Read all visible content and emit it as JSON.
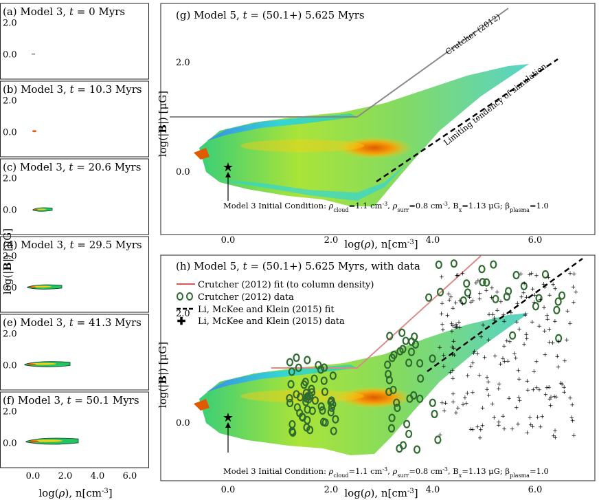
{
  "chart_data": [
    {
      "panel": "a",
      "type": "scatter",
      "title": "(a) Model 3, t = 0 Myrs",
      "title_prefix": "(a) Model 3, ",
      "t_label": "t",
      "t_rest": " = 0 Myrs",
      "yticks": [
        "2.0",
        "0.0"
      ]
    },
    {
      "panel": "b",
      "type": "scatter",
      "title": "(b) Model 3, t = 10.3 Myrs",
      "title_prefix": "(b) Model 3, ",
      "t_label": "t",
      "t_rest": " = 10.3 Myrs",
      "yticks": [
        "2.0",
        "0.0"
      ]
    },
    {
      "panel": "c",
      "type": "scatter",
      "title": "(c) Model 3, t = 20.6 Myrs",
      "title_prefix": "(c) Model 3, ",
      "t_label": "t",
      "t_rest": " = 20.6 Myrs",
      "yticks": [
        "2.0",
        "0.0"
      ]
    },
    {
      "panel": "d",
      "type": "scatter",
      "title": "(d) Model 3, t = 29.5 Myrs",
      "title_prefix": "(d) Model 3, ",
      "t_label": "t",
      "t_rest": " = 29.5 Myrs",
      "yticks": [
        "2.0",
        "0.0"
      ]
    },
    {
      "panel": "e",
      "type": "scatter",
      "title": "(e) Model 3, t = 41.3 Myrs",
      "title_prefix": "(e) Model 3, ",
      "t_label": "t",
      "t_rest": " = 41.3 Myrs",
      "yticks": [
        "2.0",
        "0.0"
      ]
    },
    {
      "panel": "f",
      "type": "scatter",
      "title": "(f) Model 3, t = 50.1 Myrs",
      "title_prefix": "(f) Model 3, ",
      "t_label": "t",
      "t_rest": " = 50.1 Myrs",
      "yticks": [
        "2.0",
        "0.0"
      ],
      "xticks": [
        "0.0",
        "2.0",
        "4.0",
        "6.0"
      ]
    },
    {
      "panel": "g",
      "type": "heatmap",
      "title": "(g) Model 5, t = (50.1+) 5.625 Myrs",
      "title_prefix": "(g) Model 5, ",
      "t_label": "t",
      "t_rest": " = (50.1+) 5.625 Myrs",
      "xticks": [
        "0.0",
        "2.0",
        "4.0",
        "6.0"
      ],
      "yticks": [
        "2.0",
        "0.0"
      ],
      "annotations": [
        "Crutcher (2012)",
        "Limiting tendency of simulation"
      ],
      "initial_condition": "Model 3 Initial Condition"
    },
    {
      "panel": "h",
      "type": "heatmap",
      "title": "(h) Model 5, t = (50.1+) 5.625 Myrs, with data",
      "title_prefix": "(h) Model 5, ",
      "t_label": "t",
      "t_rest": " = (50.1+) 5.625 Myrs, with data",
      "xticks": [
        "0.0",
        "2.0",
        "4.0",
        "6.0"
      ],
      "yticks": [
        "2.0",
        "0.0"
      ],
      "legend": [
        "Crutcher (2012) fit (to column density)",
        "Crutcher (2012) data",
        "Li, McKee and Klein (2015) fit",
        "Li, McKee and Klein (2015) data"
      ],
      "initial_condition": "Model 3 Initial Condition"
    }
  ],
  "left_ylabel": "log(|B|) [μG]",
  "right_ylabel": "log(|B|) [μG]",
  "xlabel": "log(ρ), n[cm⁻³]",
  "xlabel_prefix": "log(",
  "xlabel_rho": "ρ",
  "xlabel_suffix": "), n[cm",
  "xlabel_sup": "-3",
  "xlabel_end": "]",
  "ylabel_prefix": "log(|",
  "ylabel_bold": "B",
  "ylabel_suffix": "|) [μG]",
  "ic_text": {
    "lead": "Model 3 Initial Condition: ",
    "rho": "ρ",
    "cloud_sub": "cloud",
    "cloud_val": "=1.1 cm",
    "rho2": "ρ",
    "surr_sub": "surr",
    "surr_val": "=0.8 cm",
    "sup": "-3",
    "sep": ", ",
    "bx": "B",
    "bx_sub": "x",
    "bx_val": "=1.13 μG; β",
    "plasma_sub": "plasma",
    "plasma_val": "=1.0"
  },
  "colors": {
    "crutcher_g": "#888888",
    "crutcher_h": "#d98b8b",
    "limit": "#000000",
    "data_green": "#2f6b2f",
    "data_cross": "#444444"
  }
}
